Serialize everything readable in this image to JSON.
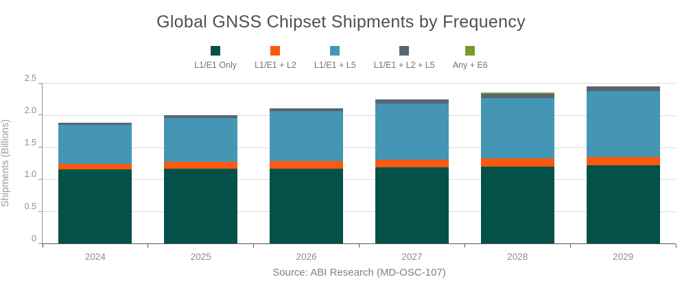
{
  "title": "Global GNSS Chipset Shipments by Frequency",
  "source": "Source: ABI Research (MD-OSC-107)",
  "y_axis": {
    "label": "Shipments (Billions)",
    "tick_values": [
      0,
      0.5,
      1.0,
      1.5,
      2.0,
      2.5
    ],
    "tick_labels": [
      "0",
      "0.5",
      "1.0",
      "1.5",
      "2.0",
      "2.5"
    ]
  },
  "chart_data": {
    "type": "bar",
    "stacked": true,
    "title": "Global GNSS Chipset Shipments by Frequency",
    "xlabel": "",
    "ylabel": "Shipments (Billions)",
    "ylim": [
      0,
      2.5
    ],
    "grid": true,
    "legend_position": "top",
    "categories": [
      "2024",
      "2025",
      "2026",
      "2027",
      "2028",
      "2029"
    ],
    "series": [
      {
        "name": "L1/E1 Only",
        "color": "#04514a",
        "values": [
          1.15,
          1.16,
          1.17,
          1.19,
          1.2,
          1.22
        ]
      },
      {
        "name": "L1/E1 + L2",
        "color": "#fa5a0f",
        "values": [
          0.09,
          0.11,
          0.11,
          0.11,
          0.12,
          0.13
        ]
      },
      {
        "name": "L1/E1 + L5",
        "color": "#4496b4",
        "values": [
          0.61,
          0.69,
          0.78,
          0.88,
          0.95,
          1.02
        ]
      },
      {
        "name": "L1/E1 + L2 + L5",
        "color": "#5a6572",
        "values": [
          0.03,
          0.04,
          0.05,
          0.06,
          0.06,
          0.08
        ]
      },
      {
        "name": "Any + E6",
        "color": "#78992c",
        "values": [
          0,
          0,
          0,
          0,
          0.02,
          0
        ]
      }
    ],
    "totals": [
      1.88,
      2.0,
      2.11,
      2.24,
      2.35,
      2.45
    ]
  }
}
